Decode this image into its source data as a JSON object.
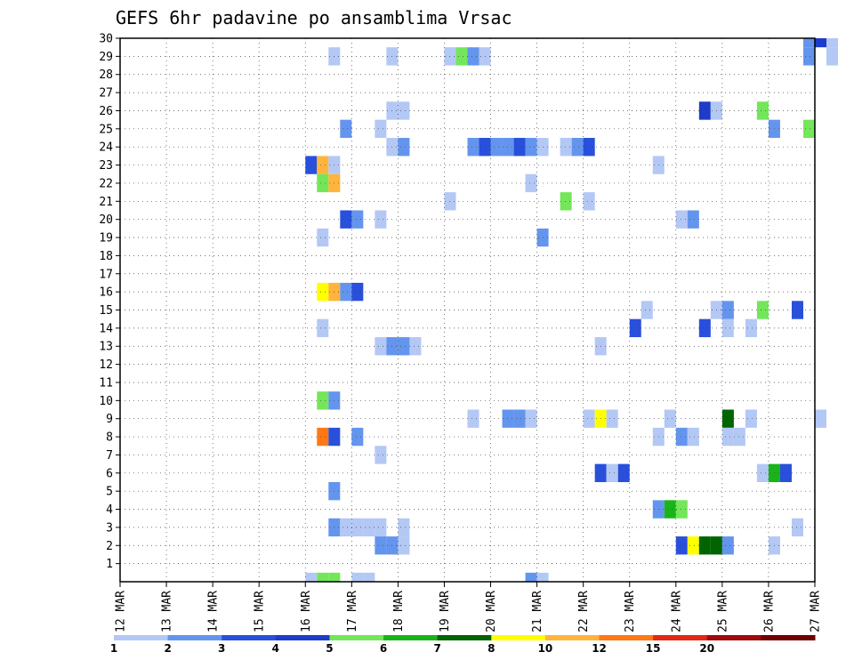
{
  "chart_data": {
    "type": "heatmap",
    "title": "GEFS 6hr padavine po ansamblima Vrsac",
    "xlabel": "",
    "ylabel": "",
    "grid": true,
    "x_ticks": [
      "12 MAR",
      "13 MAR",
      "14 MAR",
      "15 MAR",
      "16 MAR",
      "17 MAR",
      "18 MAR",
      "19 MAR",
      "20 MAR",
      "21 MAR",
      "22 MAR",
      "23 MAR",
      "24 MAR",
      "25 MAR",
      "26 MAR",
      "27 MAR"
    ],
    "x_range_days": [
      12,
      27
    ],
    "y_ticks": [
      1,
      2,
      3,
      4,
      5,
      6,
      7,
      8,
      9,
      10,
      11,
      12,
      13,
      14,
      15,
      16,
      17,
      18,
      19,
      20,
      21,
      22,
      23,
      24,
      25,
      26,
      27,
      28,
      29,
      30
    ],
    "y_range": [
      0,
      30
    ],
    "legend": {
      "placement": "bottom",
      "levels": [
        "1",
        "2",
        "3",
        "4",
        "5",
        "6",
        "7",
        "8",
        "10",
        "12",
        "15",
        "20"
      ],
      "colors": [
        "#b4c8f5",
        "#6495ee",
        "#2850dc",
        "#1e3cc8",
        "#73e65a",
        "#19b419",
        "#006400",
        "#ffff00",
        "#ffb43c",
        "#ff7814",
        "#e12814",
        "#a00a0a",
        "#6e0000"
      ]
    },
    "cells": [
      {
        "member": 30,
        "time": "26 MAR 18z",
        "level": 2
      },
      {
        "member": 30,
        "time": "27 MAR 00z",
        "level": 4
      },
      {
        "member": 30,
        "time": "27 MAR 06z",
        "level": 1
      },
      {
        "member": 29,
        "time": "16 MAR 12z",
        "level": 1
      },
      {
        "member": 29,
        "time": "17 MAR 18z",
        "level": 1
      },
      {
        "member": 29,
        "time": "19 MAR 00z",
        "level": 1
      },
      {
        "member": 29,
        "time": "19 MAR 06z",
        "level": 5
      },
      {
        "member": 29,
        "time": "19 MAR 12z",
        "level": 2
      },
      {
        "member": 29,
        "time": "19 MAR 18z",
        "level": 1
      },
      {
        "member": 29,
        "time": "26 MAR 18z",
        "level": 2
      },
      {
        "member": 29,
        "time": "27 MAR 06z",
        "level": 1
      },
      {
        "member": 26,
        "time": "17 MAR 18z",
        "level": 1
      },
      {
        "member": 26,
        "time": "18 MAR 00z",
        "level": 1
      },
      {
        "member": 26,
        "time": "24 MAR 12z",
        "level": 4
      },
      {
        "member": 26,
        "time": "24 MAR 18z",
        "level": 1
      },
      {
        "member": 26,
        "time": "25 MAR 18z",
        "level": 5
      },
      {
        "member": 25,
        "time": "16 MAR 18z",
        "level": 2
      },
      {
        "member": 25,
        "time": "17 MAR 12z",
        "level": 1
      },
      {
        "member": 25,
        "time": "26 MAR 00z",
        "level": 2
      },
      {
        "member": 25,
        "time": "26 MAR 18z",
        "level": 5
      },
      {
        "member": 24,
        "time": "17 MAR 18z",
        "level": 1
      },
      {
        "member": 24,
        "time": "18 MAR 00z",
        "level": 2
      },
      {
        "member": 24,
        "time": "19 MAR 12z",
        "level": 2
      },
      {
        "member": 24,
        "time": "19 MAR 18z",
        "level": 3
      },
      {
        "member": 24,
        "time": "20 MAR 00z",
        "level": 2
      },
      {
        "member": 24,
        "time": "20 MAR 06z",
        "level": 2
      },
      {
        "member": 24,
        "time": "20 MAR 12z",
        "level": 3
      },
      {
        "member": 24,
        "time": "20 MAR 18z",
        "level": 2
      },
      {
        "member": 24,
        "time": "21 MAR 00z",
        "level": 1
      },
      {
        "member": 24,
        "time": "21 MAR 12z",
        "level": 1
      },
      {
        "member": 24,
        "time": "21 MAR 18z",
        "level": 2
      },
      {
        "member": 24,
        "time": "22 MAR 00z",
        "level": 3
      },
      {
        "member": 23,
        "time": "16 MAR 00z",
        "level": 3
      },
      {
        "member": 23,
        "time": "16 MAR 06z",
        "level": 9
      },
      {
        "member": 23,
        "time": "16 MAR 12z",
        "level": 1
      },
      {
        "member": 23,
        "time": "23 MAR 12z",
        "level": 1
      },
      {
        "member": 22,
        "time": "16 MAR 06z",
        "level": 5
      },
      {
        "member": 22,
        "time": "16 MAR 12z",
        "level": 9
      },
      {
        "member": 22,
        "time": "20 MAR 18z",
        "level": 1
      },
      {
        "member": 21,
        "time": "19 MAR 00z",
        "level": 1
      },
      {
        "member": 21,
        "time": "21 MAR 12z",
        "level": 5
      },
      {
        "member": 21,
        "time": "22 MAR 00z",
        "level": 1
      },
      {
        "member": 20,
        "time": "16 MAR 18z",
        "level": 3
      },
      {
        "member": 20,
        "time": "17 MAR 00z",
        "level": 2
      },
      {
        "member": 20,
        "time": "17 MAR 12z",
        "level": 1
      },
      {
        "member": 20,
        "time": "24 MAR 00z",
        "level": 1
      },
      {
        "member": 20,
        "time": "24 MAR 06z",
        "level": 2
      },
      {
        "member": 19,
        "time": "16 MAR 06z",
        "level": 1
      },
      {
        "member": 19,
        "time": "21 MAR 00z",
        "level": 2
      },
      {
        "member": 16,
        "time": "16 MAR 06z",
        "level": 8
      },
      {
        "member": 16,
        "time": "16 MAR 12z",
        "level": 9
      },
      {
        "member": 16,
        "time": "16 MAR 18z",
        "level": 2
      },
      {
        "member": 16,
        "time": "17 MAR 00z",
        "level": 3
      },
      {
        "member": 15,
        "time": "23 MAR 06z",
        "level": 1
      },
      {
        "member": 15,
        "time": "24 MAR 18z",
        "level": 1
      },
      {
        "member": 15,
        "time": "25 MAR 00z",
        "level": 2
      },
      {
        "member": 15,
        "time": "25 MAR 18z",
        "level": 5
      },
      {
        "member": 15,
        "time": "26 MAR 12z",
        "level": 3
      },
      {
        "member": 14,
        "time": "16 MAR 06z",
        "level": 1
      },
      {
        "member": 14,
        "time": "23 MAR 00z",
        "level": 3
      },
      {
        "member": 14,
        "time": "24 MAR 12z",
        "level": 3
      },
      {
        "member": 14,
        "time": "25 MAR 00z",
        "level": 1
      },
      {
        "member": 14,
        "time": "25 MAR 12z",
        "level": 1
      },
      {
        "member": 13,
        "time": "17 MAR 12z",
        "level": 1
      },
      {
        "member": 13,
        "time": "17 MAR 18z",
        "level": 2
      },
      {
        "member": 13,
        "time": "18 MAR 00z",
        "level": 2
      },
      {
        "member": 13,
        "time": "18 MAR 06z",
        "level": 1
      },
      {
        "member": 13,
        "time": "22 MAR 06z",
        "level": 1
      },
      {
        "member": 10,
        "time": "16 MAR 06z",
        "level": 5
      },
      {
        "member": 10,
        "time": "16 MAR 12z",
        "level": 2
      },
      {
        "member": 9,
        "time": "19 MAR 12z",
        "level": 1
      },
      {
        "member": 9,
        "time": "20 MAR 06z",
        "level": 2
      },
      {
        "member": 9,
        "time": "20 MAR 12z",
        "level": 2
      },
      {
        "member": 9,
        "time": "20 MAR 18z",
        "level": 1
      },
      {
        "member": 9,
        "time": "22 MAR 00z",
        "level": 1
      },
      {
        "member": 9,
        "time": "22 MAR 06z",
        "level": 8
      },
      {
        "member": 9,
        "time": "22 MAR 12z",
        "level": 1
      },
      {
        "member": 9,
        "time": "23 MAR 18z",
        "level": 1
      },
      {
        "member": 9,
        "time": "25 MAR 00z",
        "level": 7
      },
      {
        "member": 9,
        "time": "25 MAR 12z",
        "level": 1
      },
      {
        "member": 9,
        "time": "27 MAR 00z",
        "level": 1
      },
      {
        "member": 8,
        "time": "16 MAR 06z",
        "level": 10
      },
      {
        "member": 8,
        "time": "16 MAR 12z",
        "level": 3
      },
      {
        "member": 8,
        "time": "17 MAR 00z",
        "level": 2
      },
      {
        "member": 8,
        "time": "23 MAR 12z",
        "level": 1
      },
      {
        "member": 8,
        "time": "24 MAR 00z",
        "level": 2
      },
      {
        "member": 8,
        "time": "24 MAR 06z",
        "level": 1
      },
      {
        "member": 8,
        "time": "25 MAR 00z",
        "level": 1
      },
      {
        "member": 8,
        "time": "25 MAR 06z",
        "level": 1
      },
      {
        "member": 7,
        "time": "17 MAR 12z",
        "level": 1
      },
      {
        "member": 6,
        "time": "22 MAR 06z",
        "level": 3
      },
      {
        "member": 6,
        "time": "22 MAR 12z",
        "level": 1
      },
      {
        "member": 6,
        "time": "22 MAR 18z",
        "level": 3
      },
      {
        "member": 6,
        "time": "25 MAR 18z",
        "level": 1
      },
      {
        "member": 6,
        "time": "26 MAR 00z",
        "level": 6
      },
      {
        "member": 6,
        "time": "26 MAR 06z",
        "level": 3
      },
      {
        "member": 5,
        "time": "16 MAR 12z",
        "level": 2
      },
      {
        "member": 4,
        "time": "23 MAR 12z",
        "level": 2
      },
      {
        "member": 4,
        "time": "23 MAR 18z",
        "level": 6
      },
      {
        "member": 4,
        "time": "24 MAR 00z",
        "level": 5
      },
      {
        "member": 3,
        "time": "16 MAR 12z",
        "level": 2
      },
      {
        "member": 3,
        "time": "16 MAR 18z",
        "level": 1
      },
      {
        "member": 3,
        "time": "17 MAR 00z",
        "level": 1
      },
      {
        "member": 3,
        "time": "17 MAR 06z",
        "level": 1
      },
      {
        "member": 3,
        "time": "17 MAR 12z",
        "level": 1
      },
      {
        "member": 3,
        "time": "18 MAR 00z",
        "level": 1
      },
      {
        "member": 3,
        "time": "26 MAR 12z",
        "level": 1
      },
      {
        "member": 2,
        "time": "17 MAR 12z",
        "level": 2
      },
      {
        "member": 2,
        "time": "17 MAR 18z",
        "level": 2
      },
      {
        "member": 2,
        "time": "18 MAR 00z",
        "level": 1
      },
      {
        "member": 2,
        "time": "24 MAR 00z",
        "level": 3
      },
      {
        "member": 2,
        "time": "24 MAR 06z",
        "level": 8
      },
      {
        "member": 2,
        "time": "24 MAR 12z",
        "level": 7
      },
      {
        "member": 2,
        "time": "24 MAR 18z",
        "level": 7
      },
      {
        "member": 2,
        "time": "25 MAR 00z",
        "level": 2
      },
      {
        "member": 2,
        "time": "26 MAR 00z",
        "level": 1
      },
      {
        "member": 0,
        "time": "16 MAR 00z",
        "level": 1
      },
      {
        "member": 0,
        "time": "16 MAR 06z",
        "level": 5
      },
      {
        "member": 0,
        "time": "16 MAR 12z",
        "level": 5
      },
      {
        "member": 0,
        "time": "17 MAR 00z",
        "level": 1
      },
      {
        "member": 0,
        "time": "17 MAR 06z",
        "level": 1
      },
      {
        "member": 0,
        "time": "20 MAR 18z",
        "level": 2
      },
      {
        "member": 0,
        "time": "21 MAR 00z",
        "level": 1
      }
    ]
  }
}
